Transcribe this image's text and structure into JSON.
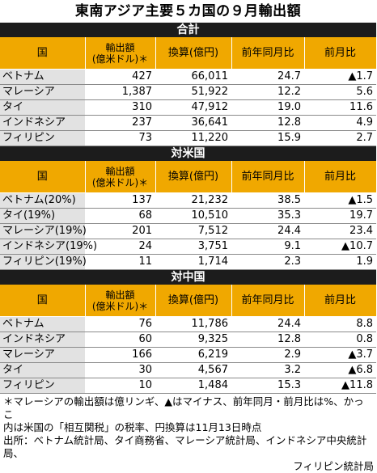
{
  "title": "東南アジア主要５カ国の９月輸出額",
  "headers": {
    "country": "国",
    "export_line1": "輸出額",
    "export_line2": "(億米ドル)＊",
    "converted": "換算(億円)",
    "yoy": "前年同月比",
    "mom": "前月比"
  },
  "sections": [
    {
      "label": "合計",
      "rows": [
        {
          "country": "ベトナム",
          "export": "427",
          "yen": "66,011",
          "yoy": "24.7",
          "mom": "▲1.7"
        },
        {
          "country": "マレーシア",
          "export": "1,387",
          "yen": "51,922",
          "yoy": "12.2",
          "mom": "5.6"
        },
        {
          "country": "タイ",
          "export": "310",
          "yen": "47,912",
          "yoy": "19.0",
          "mom": "11.6"
        },
        {
          "country": "インドネシア",
          "export": "237",
          "yen": "36,641",
          "yoy": "12.8",
          "mom": "4.9"
        },
        {
          "country": "フィリピン",
          "export": "73",
          "yen": "11,220",
          "yoy": "15.9",
          "mom": "2.7"
        }
      ]
    },
    {
      "label": "対米国",
      "rows": [
        {
          "country": "ベトナム(20%)",
          "export": "137",
          "yen": "21,232",
          "yoy": "38.5",
          "mom": "▲1.5"
        },
        {
          "country": "タイ(19%)",
          "export": "68",
          "yen": "10,510",
          "yoy": "35.3",
          "mom": "19.7"
        },
        {
          "country": "マレーシア(19%)",
          "export": "201",
          "yen": "7,512",
          "yoy": "24.4",
          "mom": "23.4"
        },
        {
          "country": "インドネシア(19%)",
          "export": "24",
          "yen": "3,751",
          "yoy": "9.1",
          "mom": "▲10.7"
        },
        {
          "country": "フィリピン(19%)",
          "export": "11",
          "yen": "1,714",
          "yoy": "2.3",
          "mom": "1.9"
        }
      ]
    },
    {
      "label": "対中国",
      "rows": [
        {
          "country": "ベトナム",
          "export": "76",
          "yen": "11,786",
          "yoy": "24.4",
          "mom": "8.8"
        },
        {
          "country": "インドネシア",
          "export": "60",
          "yen": "9,325",
          "yoy": "12.8",
          "mom": "0.8"
        },
        {
          "country": "マレーシア",
          "export": "166",
          "yen": "6,219",
          "yoy": "2.9",
          "mom": "▲3.7"
        },
        {
          "country": "タイ",
          "export": "30",
          "yen": "4,567",
          "yoy": "3.2",
          "mom": "▲6.8"
        },
        {
          "country": "フィリピン",
          "export": "10",
          "yen": "1,484",
          "yoy": "15.3",
          "mom": "▲11.8"
        }
      ]
    }
  ],
  "footnotes": {
    "note1": "＊マレーシアの輸出額は億リンギ、▲はマイナス、前年同月・前月比は%、かっこ",
    "note2": "内は米国の「相互関税」の税率、円換算は11月13日時点",
    "source1": "出所：ベトナム統計局、タイ商務省、マレーシア統計局、インドネシア中央統計局、",
    "source2": "フィリピン統計局"
  }
}
